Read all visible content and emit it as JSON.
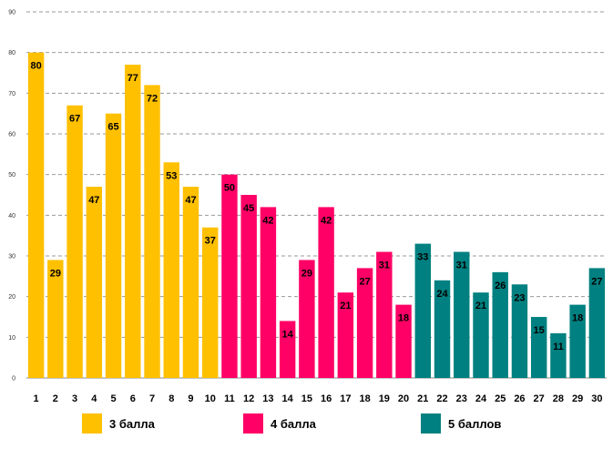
{
  "chart_data": {
    "type": "bar",
    "title": "",
    "xlabel": "",
    "ylabel": "",
    "ylim": [
      0,
      90
    ],
    "yticks": [
      0,
      10,
      20,
      30,
      40,
      50,
      60,
      70,
      80,
      90
    ],
    "grid": true,
    "categories": [
      "1",
      "2",
      "3",
      "4",
      "5",
      "6",
      "7",
      "8",
      "9",
      "10",
      "11",
      "12",
      "13",
      "14",
      "15",
      "16",
      "17",
      "18",
      "19",
      "20",
      "21",
      "22",
      "23",
      "24",
      "25",
      "26",
      "27",
      "28",
      "29",
      "30"
    ],
    "values": [
      80,
      29,
      67,
      47,
      65,
      77,
      72,
      53,
      47,
      37,
      50,
      45,
      42,
      14,
      29,
      42,
      21,
      27,
      31,
      18,
      33,
      24,
      31,
      21,
      26,
      23,
      15,
      11,
      18,
      27
    ],
    "groups": [
      {
        "name": "3 балла",
        "color": "#FFC000",
        "start": 0,
        "end": 9
      },
      {
        "name": "4 балла",
        "color": "#FF0066",
        "start": 10,
        "end": 19
      },
      {
        "name": "5 баллов",
        "color": "#008080",
        "start": 20,
        "end": 29
      }
    ],
    "legend_position": "bottom"
  }
}
